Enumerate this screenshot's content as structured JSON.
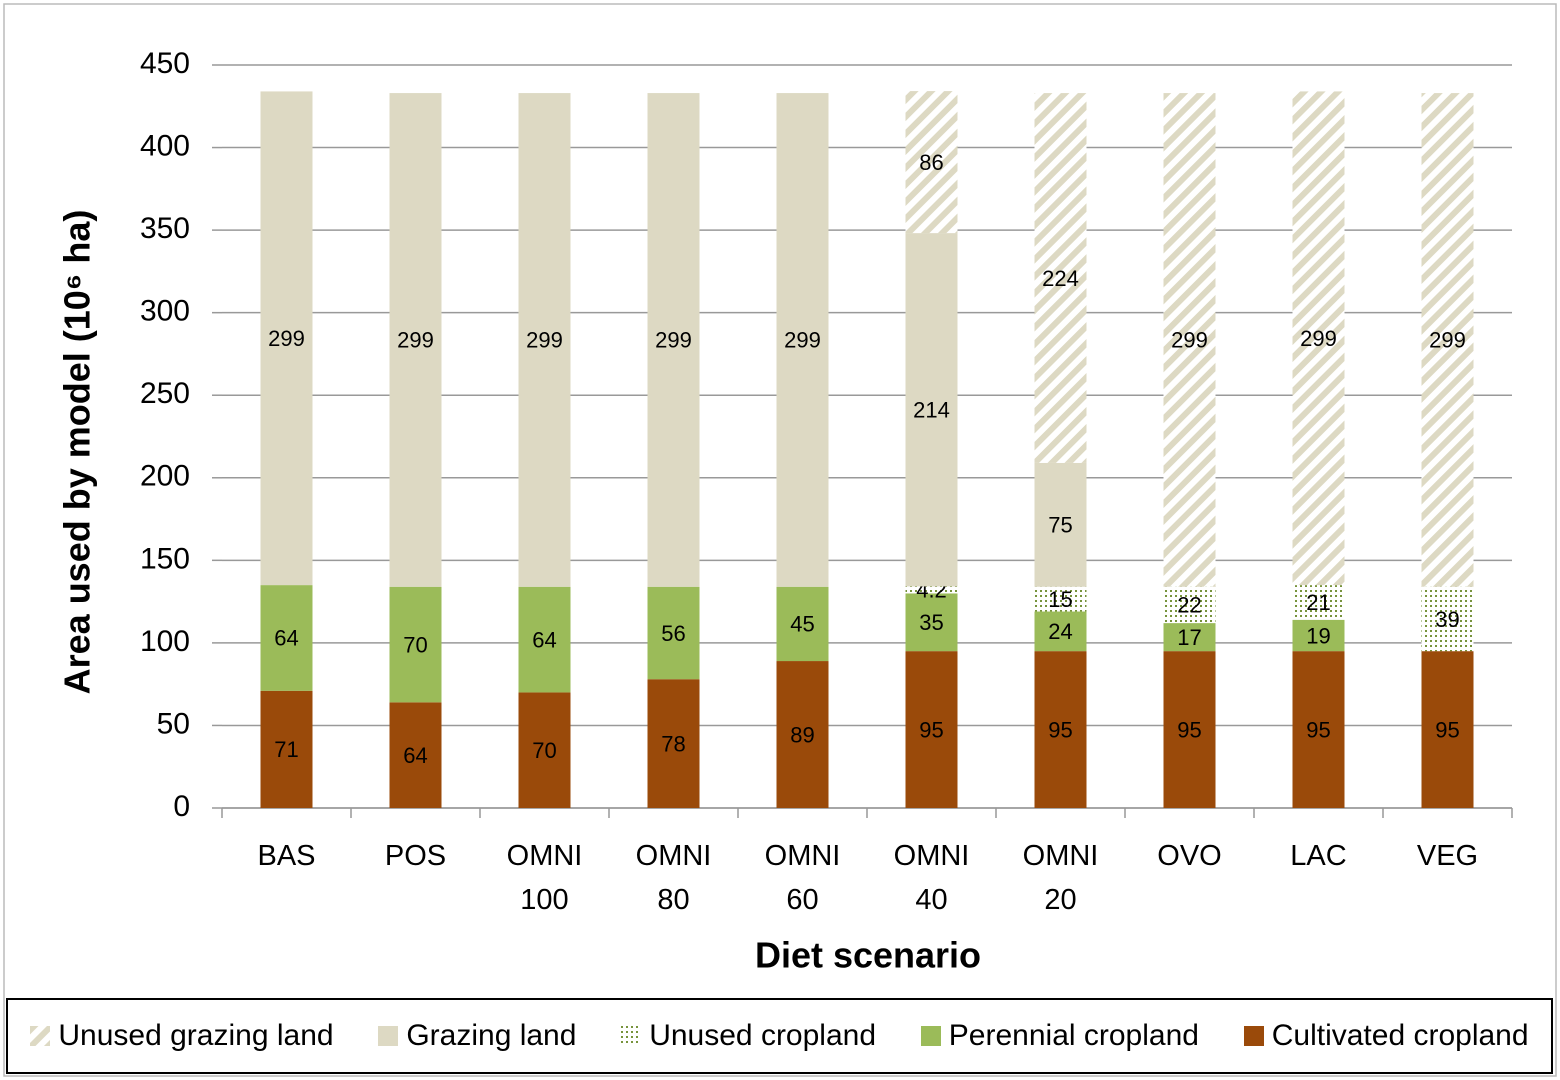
{
  "chart_data": {
    "type": "stacked_bar",
    "x_label": "Diet scenario",
    "y_label": "Area used by model (10⁶ ha)",
    "categories": [
      "BAS",
      "POS",
      "OMNI 100",
      "OMNI 80",
      "OMNI 60",
      "OMNI 40",
      "OMNI 20",
      "OVO",
      "LAC",
      "VEG"
    ],
    "series": [
      {
        "name": "Cultivated cropland",
        "color": "#9a4a0a",
        "pattern": "solid",
        "values": [
          71,
          64,
          70,
          78,
          89,
          95,
          95,
          95,
          95,
          95
        ]
      },
      {
        "name": "Perennial cropland",
        "color": "#9bbb59",
        "pattern": "solid",
        "values": [
          64,
          70,
          64,
          56,
          45,
          35,
          24,
          17,
          19,
          null
        ]
      },
      {
        "name": "Unused cropland",
        "color": "#77933c",
        "pattern": "dots",
        "values": [
          null,
          null,
          null,
          null,
          null,
          4.2,
          15,
          22,
          21,
          39
        ]
      },
      {
        "name": "Grazing land",
        "color": "#ddd9c3",
        "pattern": "solid",
        "values": [
          299,
          299,
          299,
          299,
          299,
          214,
          75,
          null,
          null,
          null
        ]
      },
      {
        "name": "Unused grazing land",
        "color": "#ddd9c3",
        "pattern": "hatch",
        "values": [
          null,
          null,
          null,
          null,
          null,
          86,
          224,
          299,
          299,
          299
        ]
      }
    ],
    "ylim": [
      0,
      450
    ],
    "yticks": [
      0,
      50,
      100,
      150,
      200,
      250,
      300,
      350,
      400,
      450
    ],
    "grid": true,
    "legend": "bottom"
  }
}
